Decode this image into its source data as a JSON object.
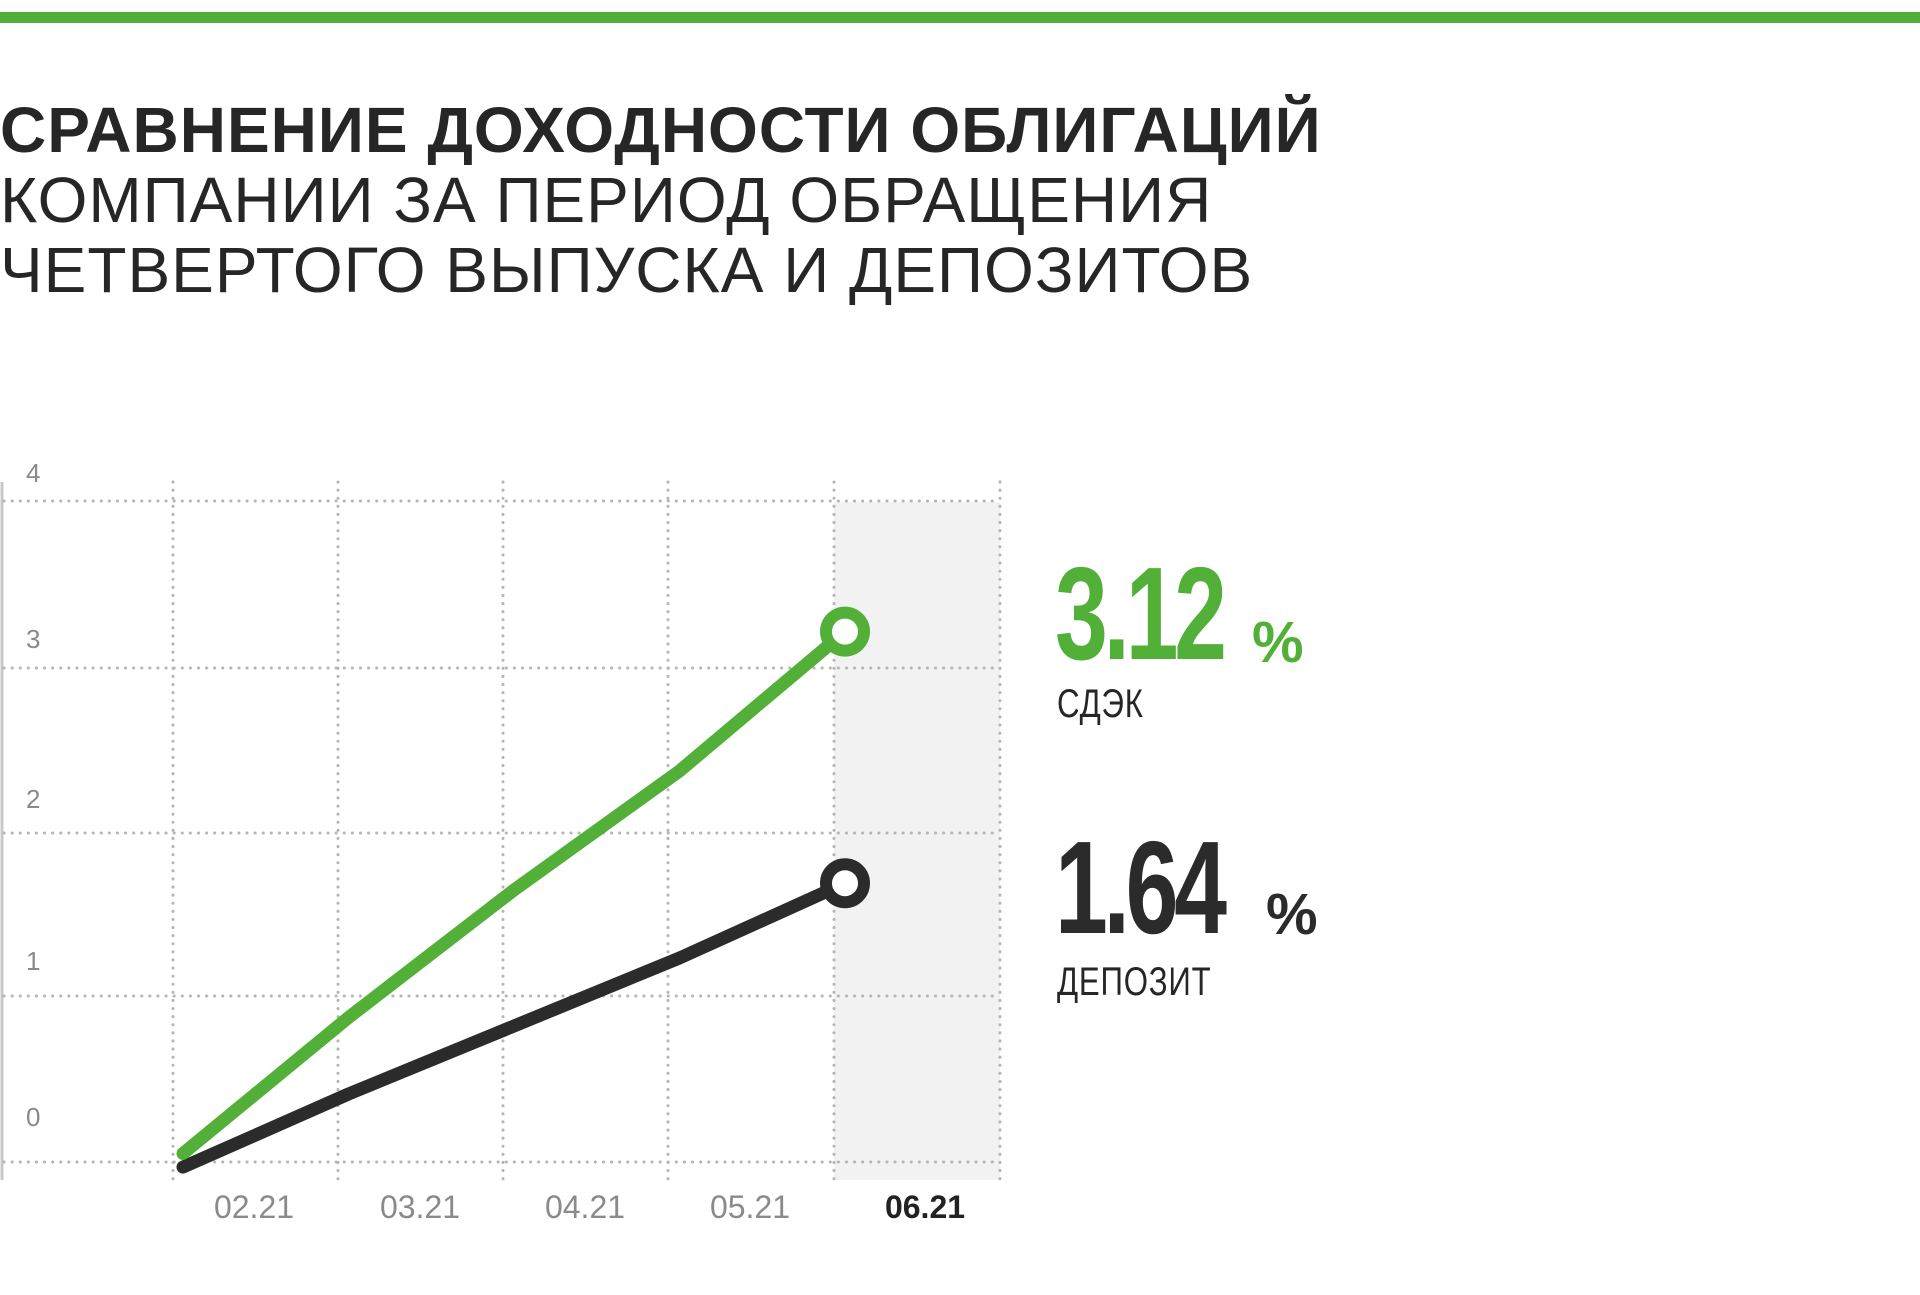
{
  "title": {
    "line1": "СРАВНЕНИЕ ДОХОДНОСТИ ОБЛИГАЦИЙ",
    "line2": "КОМПАНИИ ЗА ПЕРИОД ОБРАЩЕНИЯ",
    "line3": "ЧЕТВЕРТОГО ВЫПУСКА И ДЕПОЗИТОВ"
  },
  "colors": {
    "accent_green": "#52b038",
    "dark": "#2b2b2b",
    "grid": "#b5b5b5",
    "tick_text": "#8a8a8a",
    "highlight_column": "#f2f2f2"
  },
  "readouts": {
    "cdek": {
      "value": "3.12",
      "unit": "%",
      "label": "СДЭК"
    },
    "deposit": {
      "value": "1.64",
      "unit": "%",
      "label": "ДЕПОЗИТ"
    }
  },
  "chart_data": {
    "type": "line",
    "title": "СРАВНЕНИЕ ДОХОДНОСТИ ОБЛИГАЦИЙ КОМПАНИИ ЗА ПЕРИОД ОБРАЩЕНИЯ ЧЕТВЕРТОГО ВЫПУСКА И ДЕПОЗИТОВ",
    "xlabel": "",
    "ylabel": "",
    "categories": [
      "02.21",
      "03.21",
      "04.21",
      "05.21",
      "06.21"
    ],
    "highlighted_category": "06.21",
    "ylim": [
      0,
      4
    ],
    "yticks": [
      0,
      1,
      2,
      3,
      4
    ],
    "grid": true,
    "legend": "labels-at-line-end",
    "series": [
      {
        "name": "СДЭК",
        "color": "#52b038",
        "points": [
          {
            "x": 1.0,
            "y": 0.05
          },
          {
            "x": 2.0,
            "y": 0.85
          },
          {
            "x": 3.0,
            "y": 1.6
          },
          {
            "x": 4.0,
            "y": 2.3
          },
          {
            "x": 5.0,
            "y": 3.12
          }
        ]
      },
      {
        "name": "ДЕПОЗИТ",
        "color": "#2b2b2b",
        "points": [
          {
            "x": 1.0,
            "y": -0.03
          },
          {
            "x": 2.0,
            "y": 0.4
          },
          {
            "x": 3.0,
            "y": 0.8
          },
          {
            "x": 4.0,
            "y": 1.2
          },
          {
            "x": 5.0,
            "y": 1.64
          }
        ]
      }
    ]
  }
}
